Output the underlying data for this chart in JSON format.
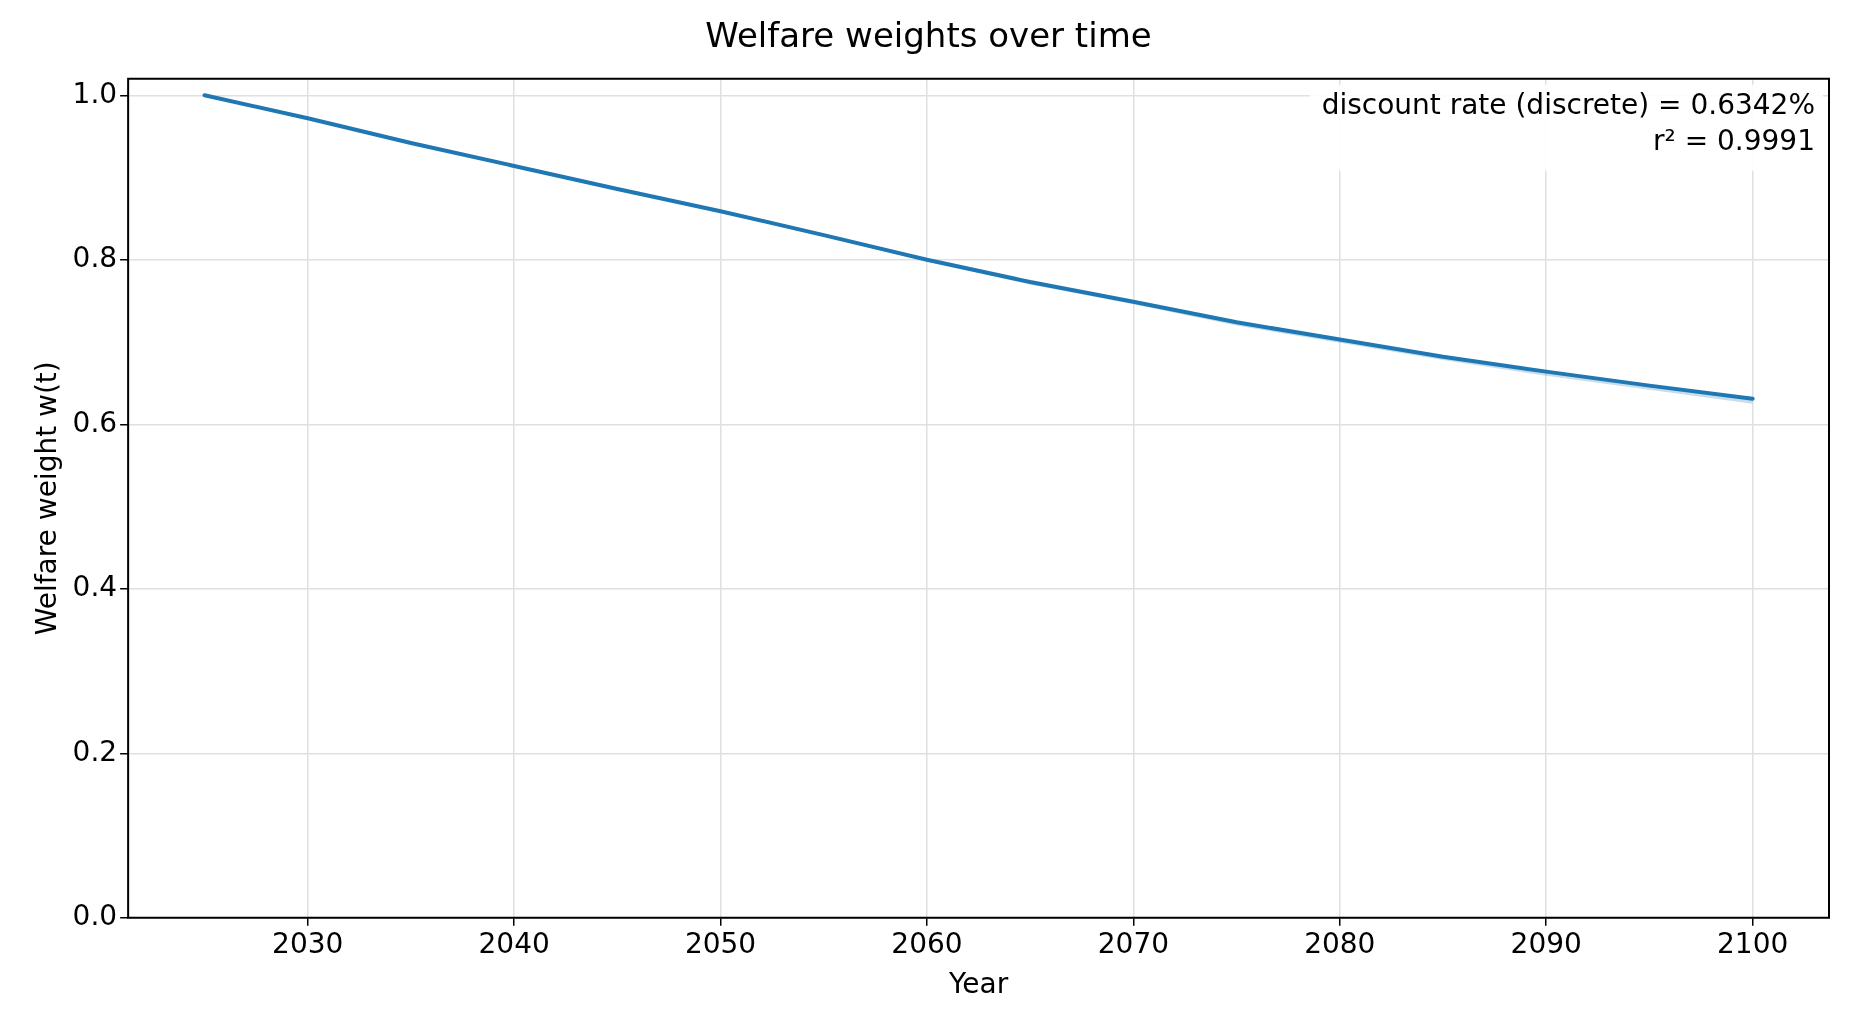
{
  "chart_data": {
    "type": "line",
    "title": "Welfare weights over time",
    "xlabel": "Year",
    "ylabel": "Welfare weight w(t)",
    "annotations": [
      "discount rate (discrete) = 0.6342%",
      "r² = 0.9991"
    ],
    "x": [
      2025,
      2030,
      2035,
      2040,
      2045,
      2050,
      2055,
      2060,
      2065,
      2070,
      2075,
      2080,
      2085,
      2090,
      2095,
      2100
    ],
    "series": [
      {
        "color": "#1f77b4",
        "values": [
          1.0,
          0.972,
          0.942,
          0.914,
          0.886,
          0.859,
          0.83,
          0.8,
          0.773,
          0.749,
          0.724,
          0.703,
          0.682,
          0.664,
          0.647,
          0.631
        ],
        "lower": [
          1.0,
          0.971,
          0.941,
          0.913,
          0.885,
          0.857,
          0.828,
          0.798,
          0.77,
          0.746,
          0.72,
          0.699,
          0.678,
          0.659,
          0.642,
          0.625
        ],
        "upper": [
          1.0,
          0.972,
          0.943,
          0.915,
          0.887,
          0.86,
          0.831,
          0.801,
          0.774,
          0.75,
          0.725,
          0.704,
          0.684,
          0.665,
          0.648,
          0.633
        ]
      }
    ],
    "xlim": [
      2021.3,
      2103.7
    ],
    "xticks": [
      2030,
      2040,
      2050,
      2060,
      2070,
      2080,
      2090,
      2100
    ],
    "ylim": [
      0,
      1.02
    ],
    "yticks": [
      {
        "value": 0,
        "label": "0.0"
      },
      {
        "value": 0.2,
        "label": "0.2"
      },
      {
        "value": 0.4,
        "label": "0.4"
      },
      {
        "value": 0.6,
        "label": "0.6"
      },
      {
        "value": 0.8,
        "label": "0.8"
      },
      {
        "value": 1,
        "label": "1.0"
      }
    ],
    "grid": true,
    "legend": false,
    "marker": "none",
    "line_style": "solid"
  }
}
